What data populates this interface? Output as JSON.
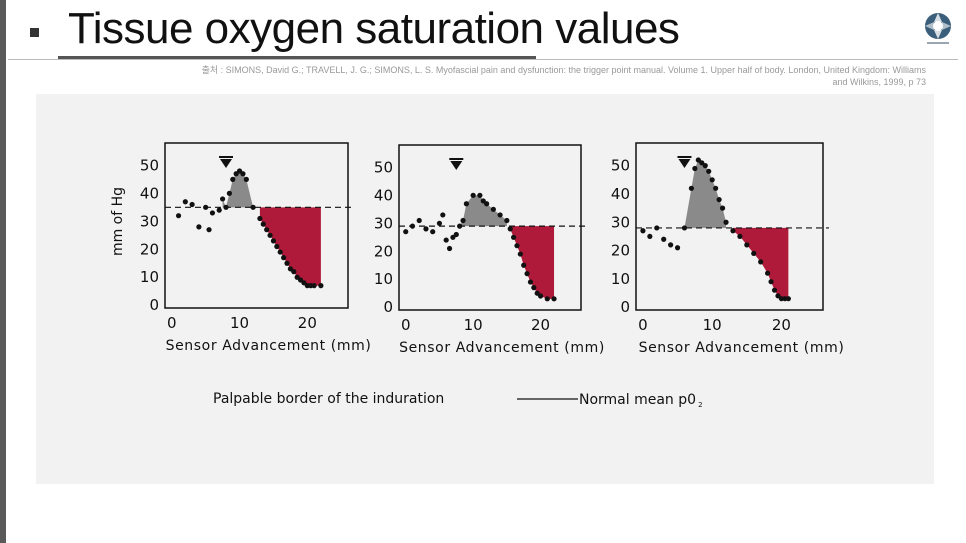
{
  "slide": {
    "title": "Tissue oxygen saturation values",
    "source_line1": "출처 : SIMONS, David G.; TRAVELL, J. G.; SIMONS, L. S. Myofascial pain and dysfunction: the trigger point manual. Volume 1. Upper half of body. London, United Kingdom: Williams",
    "source_line2": "and Wilkins, 1999, p 73"
  },
  "legend": {
    "induration": "Palpable border of the induration",
    "normal_mean": "Normal mean p0",
    "normal_mean_sub": "2"
  },
  "colors": {
    "above_fill": "#8a8a8a",
    "below_fill": "#b01a3a",
    "dots": "#111111",
    "frame": "#111111"
  },
  "chart_data": [
    {
      "type": "scatter",
      "ylabel": "mm of Hg",
      "xlabel": "Sensor Advancement (mm)",
      "xticks": [
        0,
        10,
        20
      ],
      "yticks": [
        0,
        10,
        20,
        30,
        40,
        50
      ],
      "xlim": [
        -1,
        26
      ],
      "ylim": [
        -1,
        58
      ],
      "normal_mean": 35,
      "induration_marker_x": 8,
      "points": [
        [
          1,
          32
        ],
        [
          2,
          37
        ],
        [
          3,
          36
        ],
        [
          4,
          28
        ],
        [
          5,
          35
        ],
        [
          5.5,
          27
        ],
        [
          6,
          33
        ],
        [
          7,
          34
        ],
        [
          7.5,
          38
        ],
        [
          8,
          35
        ],
        [
          8.5,
          40
        ],
        [
          9,
          45
        ],
        [
          9.5,
          47
        ],
        [
          10,
          48
        ],
        [
          10.5,
          47
        ],
        [
          11,
          45
        ],
        [
          12,
          35
        ],
        [
          13,
          31
        ],
        [
          13.5,
          29
        ],
        [
          14,
          27
        ],
        [
          14.5,
          25
        ],
        [
          15,
          23
        ],
        [
          15.5,
          21
        ],
        [
          16,
          19
        ],
        [
          16.5,
          17
        ],
        [
          17,
          15
        ],
        [
          17.5,
          13
        ],
        [
          18,
          12
        ],
        [
          18.5,
          10
        ],
        [
          19,
          9
        ],
        [
          19.5,
          8
        ],
        [
          20,
          7
        ],
        [
          20.5,
          7
        ],
        [
          21,
          7
        ],
        [
          22,
          7
        ]
      ]
    },
    {
      "type": "scatter",
      "ylabel": "",
      "xlabel": "Sensor Advancement (mm)",
      "xticks": [
        0,
        10,
        20
      ],
      "yticks": [
        0,
        10,
        20,
        30,
        40,
        50
      ],
      "xlim": [
        -1,
        26
      ],
      "ylim": [
        -1,
        58
      ],
      "normal_mean": 29,
      "induration_marker_x": 7.5,
      "points": [
        [
          0,
          27
        ],
        [
          1,
          29
        ],
        [
          2,
          31
        ],
        [
          3,
          28
        ],
        [
          4,
          27
        ],
        [
          5,
          30
        ],
        [
          5.5,
          33
        ],
        [
          6,
          24
        ],
        [
          6.5,
          21
        ],
        [
          7,
          25
        ],
        [
          7.5,
          26
        ],
        [
          8,
          29
        ],
        [
          8.5,
          31
        ],
        [
          9,
          37
        ],
        [
          10,
          40
        ],
        [
          11,
          40
        ],
        [
          11.5,
          38
        ],
        [
          12,
          37
        ],
        [
          13,
          35
        ],
        [
          14,
          33
        ],
        [
          15,
          31
        ],
        [
          15.5,
          28
        ],
        [
          16,
          25
        ],
        [
          16.5,
          22
        ],
        [
          17,
          19
        ],
        [
          17.5,
          15
        ],
        [
          18,
          12
        ],
        [
          18.5,
          9
        ],
        [
          19,
          7
        ],
        [
          19.5,
          5
        ],
        [
          20,
          4
        ],
        [
          21,
          3
        ],
        [
          22,
          3
        ]
      ]
    },
    {
      "type": "scatter",
      "ylabel": "",
      "xlabel": "Sensor Advancement (mm)",
      "xticks": [
        0,
        10,
        20
      ],
      "yticks": [
        0,
        10,
        20,
        30,
        40,
        50
      ],
      "xlim": [
        -1,
        26
      ],
      "ylim": [
        -1,
        58
      ],
      "normal_mean": 28,
      "induration_marker_x": 6,
      "points": [
        [
          0,
          27
        ],
        [
          1,
          25
        ],
        [
          2,
          28
        ],
        [
          3,
          24
        ],
        [
          4,
          22
        ],
        [
          5,
          21
        ],
        [
          6,
          28
        ],
        [
          7,
          42
        ],
        [
          7.5,
          49
        ],
        [
          8,
          52
        ],
        [
          8.5,
          51
        ],
        [
          9,
          50
        ],
        [
          9.5,
          48
        ],
        [
          10,
          45
        ],
        [
          10.5,
          42
        ],
        [
          11,
          38
        ],
        [
          11.5,
          35
        ],
        [
          12,
          30
        ],
        [
          13,
          27
        ],
        [
          14,
          25
        ],
        [
          15,
          22
        ],
        [
          16,
          19
        ],
        [
          17,
          16
        ],
        [
          18,
          12
        ],
        [
          18.5,
          9
        ],
        [
          19,
          6
        ],
        [
          19.5,
          4
        ],
        [
          20,
          3
        ],
        [
          20.5,
          3
        ],
        [
          21,
          3
        ]
      ]
    }
  ]
}
